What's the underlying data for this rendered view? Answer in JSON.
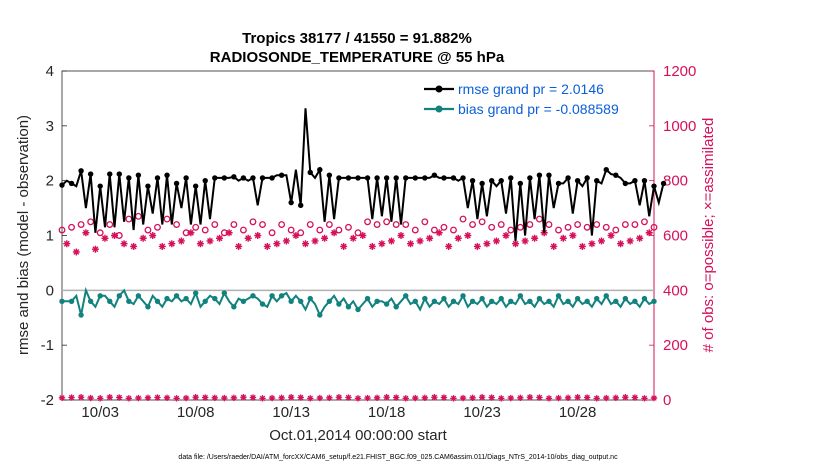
{
  "chart_data": {
    "type": "line",
    "title": "Tropics 38177 / 41550 = 91.882%",
    "subtitle": "RADIOSONDE_TEMPERATURE @ 55 hPa",
    "xlabel": "Oct.01,2014 00:00:00 start",
    "ylabel_left": "rmse and bias (model - observation)",
    "ylabel_right": "# of obs: o=possible; ×=assimilated",
    "footnote": "data file: /Users/raeder/DAI/ATM_forcXX/CAM6_setup/f.e21.FHIST_BGC.f09_025.CAM6assim.011/Diags_NTrS_2014-10/obs_diag_output.nc",
    "x_range": [
      1,
      32
    ],
    "ylim_left": [
      -2,
      4
    ],
    "ylim_right": [
      0,
      1200
    ],
    "yticks_left": [
      "-2",
      "-1",
      "0",
      "1",
      "2",
      "3",
      "4"
    ],
    "yticks_right": [
      "0",
      "200",
      "400",
      "600",
      "800",
      "1000",
      "1200"
    ],
    "xticks": [
      {
        "day": 3,
        "label": "10/03"
      },
      {
        "day": 8,
        "label": "10/08"
      },
      {
        "day": 13,
        "label": "10/13"
      },
      {
        "day": 18,
        "label": "10/18"
      },
      {
        "day": 23,
        "label": "10/23"
      },
      {
        "day": 28,
        "label": "10/28"
      }
    ],
    "legend": {
      "rmse": "rmse grand pr = 2.0146",
      "bias": "bias grand pr = -0.088589"
    },
    "colors": {
      "rmse": "#000000",
      "bias": "#12827f",
      "obs": "#d6105a",
      "legend_text": "#0b5fd9",
      "zero_line": "#b0b0b0"
    },
    "x_start": 1.0,
    "x_step": 0.25,
    "rmse": [
      1.92,
      2.0,
      1.95,
      1.9,
      2.18,
      1.5,
      2.12,
      1.05,
      1.9,
      1.15,
      2.12,
      1.15,
      2.12,
      1.25,
      2.05,
      1.1,
      2.1,
      1.2,
      1.9,
      1.4,
      2.05,
      1.2,
      2.1,
      1.2,
      1.95,
      1.5,
      2.05,
      1.2,
      1.9,
      1.2,
      2.0,
      1.3,
      2.05,
      2.05,
      2.05,
      2.05,
      2.07,
      2.0,
      2.05,
      2.0,
      2.05,
      1.55,
      2.05,
      2.05,
      2.05,
      2.1,
      2.1,
      2.1,
      1.6,
      2.2,
      1.55,
      3.32,
      2.15,
      2.05,
      2.2,
      1.25,
      2.1,
      1.3,
      2.05,
      2.05,
      2.05,
      2.05,
      2.05,
      2.05,
      2.05,
      1.3,
      2.05,
      1.35,
      2.05,
      1.25,
      2.05,
      1.2,
      2.05,
      2.05,
      2.05,
      2.05,
      2.05,
      2.05,
      2.1,
      2.05,
      2.05,
      2.05,
      2.05,
      2.0,
      2.05,
      1.5,
      2.0,
      1.3,
      1.95,
      1.35,
      2.0,
      1.9,
      2.0,
      1.4,
      2.05,
      0.9,
      1.95,
      1.0,
      2.05,
      1.3,
      2.1,
      1.05,
      2.1,
      1.5,
      1.95,
      1.95,
      2.05,
      1.4,
      2.0,
      1.9,
      2.05,
      1.0,
      2.0,
      1.95,
      2.2,
      2.12,
      2.1,
      2.05,
      1.95,
      1.95,
      2.0,
      1.55,
      2.0,
      1.35,
      1.9,
      1.6,
      1.95
    ],
    "bias": [
      -0.2,
      -0.2,
      -0.2,
      -0.1,
      -0.45,
      0.0,
      -0.2,
      -0.3,
      -0.1,
      -0.1,
      -0.2,
      -0.3,
      -0.1,
      0.0,
      -0.2,
      -0.25,
      -0.1,
      -0.2,
      -0.3,
      -0.1,
      -0.2,
      -0.3,
      -0.15,
      -0.2,
      -0.1,
      -0.2,
      -0.15,
      -0.25,
      -0.05,
      -0.3,
      -0.2,
      -0.1,
      -0.15,
      -0.25,
      -0.05,
      -0.2,
      -0.3,
      -0.15,
      -0.2,
      -0.15,
      -0.1,
      -0.15,
      -0.25,
      -0.3,
      -0.1,
      -0.2,
      -0.1,
      -0.05,
      -0.2,
      -0.1,
      -0.2,
      -0.35,
      -0.15,
      -0.25,
      -0.45,
      -0.3,
      -0.2,
      -0.1,
      -0.25,
      -0.15,
      -0.3,
      -0.2,
      -0.35,
      -0.25,
      -0.15,
      -0.3,
      -0.2,
      -0.2,
      -0.25,
      -0.15,
      -0.3,
      -0.2,
      -0.1,
      -0.25,
      -0.2,
      -0.35,
      -0.15,
      -0.3,
      -0.2,
      -0.25,
      -0.15,
      -0.3,
      -0.2,
      -0.25,
      -0.1,
      -0.3,
      -0.2,
      -0.25,
      -0.15,
      -0.3,
      -0.2,
      -0.25,
      -0.15,
      -0.3,
      -0.2,
      -0.25,
      -0.1,
      -0.25,
      -0.2,
      -0.3,
      -0.15,
      -0.25,
      -0.2,
      -0.3,
      -0.1,
      -0.25,
      -0.2,
      -0.3,
      -0.15,
      -0.25,
      -0.2,
      -0.3,
      -0.15,
      -0.25,
      -0.1,
      -0.25,
      -0.2,
      -0.3,
      -0.15,
      -0.25,
      -0.2,
      -0.3,
      -0.15,
      -0.25,
      -0.2
    ],
    "possible": [
      620,
      660,
      630,
      570,
      640,
      600,
      650,
      640,
      610,
      600,
      640,
      620,
      600,
      620,
      660,
      610,
      670,
      630,
      620,
      640,
      630,
      640,
      660,
      620,
      640,
      650,
      610,
      640,
      630,
      650,
      620,
      660,
      640,
      620,
      610,
      650,
      640,
      670,
      620,
      640,
      650,
      630,
      640,
      620,
      610,
      630,
      640,
      650,
      620,
      640,
      610,
      630,
      640,
      650,
      620,
      630,
      640,
      650,
      620,
      640,
      630,
      650,
      610,
      640,
      650,
      620,
      640,
      630,
      650,
      620,
      640,
      630,
      640,
      650,
      620,
      640,
      650,
      630,
      620,
      640,
      630,
      650,
      620,
      640,
      660,
      630,
      640,
      620,
      650,
      640,
      630,
      660,
      640,
      650,
      620,
      640,
      630,
      650,
      640,
      620,
      660,
      630,
      640,
      650,
      620,
      640,
      630,
      650,
      640,
      620,
      630,
      650,
      640,
      660,
      630,
      640,
      620,
      650,
      640,
      630,
      640,
      620,
      650,
      640,
      630
    ],
    "assimilated": [
      590,
      570,
      600,
      540,
      560,
      610,
      580,
      550,
      600,
      590,
      560,
      600,
      580,
      570,
      600,
      560,
      610,
      590,
      570,
      600,
      580,
      560,
      590,
      570,
      600,
      580,
      560,
      610,
      590,
      570,
      600,
      580,
      560,
      590,
      570,
      610,
      580,
      560,
      600,
      590,
      570,
      600,
      580,
      560,
      590,
      570,
      610,
      580,
      560,
      600,
      590,
      570,
      600,
      580,
      560,
      590,
      570,
      610,
      580,
      560,
      600,
      590,
      570,
      600,
      580,
      560,
      590,
      570,
      610,
      580,
      560,
      600,
      590,
      570,
      600,
      580,
      560,
      590,
      570,
      610,
      580,
      560,
      600,
      590,
      570,
      600,
      580,
      560,
      590,
      570,
      610,
      580,
      560,
      600,
      590,
      570,
      600,
      580,
      560,
      590,
      570,
      610,
      580,
      560,
      600,
      590,
      570,
      600,
      580,
      560,
      590,
      570,
      610,
      580,
      560,
      600,
      590,
      570,
      600,
      580,
      560,
      590,
      570,
      610,
      580
    ],
    "zero_series": [
      8,
      7,
      9,
      6,
      10,
      8,
      7,
      9,
      6,
      8,
      10,
      7,
      9,
      8,
      6,
      9,
      7,
      10,
      8,
      6,
      9,
      7,
      8,
      10,
      6,
      9,
      7,
      8,
      10,
      7,
      9,
      6,
      8,
      10,
      7,
      9,
      8,
      6,
      10,
      7,
      9,
      8,
      6,
      10,
      7,
      9,
      8,
      6,
      10,
      7,
      9,
      8,
      6,
      10,
      7,
      9,
      8,
      6,
      10,
      7,
      9,
      8,
      6,
      10,
      7,
      9,
      8,
      6,
      10,
      7,
      9,
      8,
      6,
      10,
      7,
      9,
      8,
      6,
      10,
      7,
      9,
      8,
      6,
      10,
      7,
      9,
      8,
      6,
      10,
      7,
      9,
      8,
      6,
      10,
      7,
      9,
      8,
      6,
      10,
      7,
      9,
      8,
      6,
      10,
      7,
      9,
      8,
      6,
      10,
      7,
      9,
      8,
      6,
      10,
      7,
      9,
      8,
      6,
      10,
      7,
      9,
      8,
      6,
      10,
      7
    ]
  }
}
